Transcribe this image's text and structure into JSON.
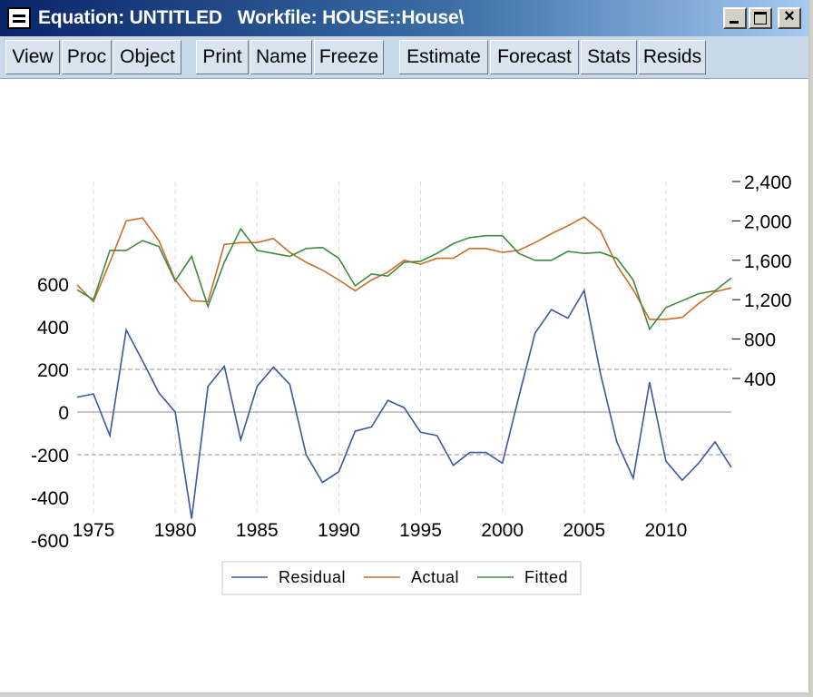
{
  "window": {
    "title": "Equation: UNTITLED   Workfile: HOUSE::House\\",
    "close_glyph": "×"
  },
  "toolbar": {
    "buttons": [
      "View",
      "Proc",
      "Object",
      "Print",
      "Name",
      "Freeze",
      "Estimate",
      "Forecast",
      "Stats",
      "Resids"
    ]
  },
  "chart_data": {
    "type": "line",
    "title": "",
    "x_ticks": [
      "1975",
      "1980",
      "1985",
      "1990",
      "1995",
      "2000",
      "2005",
      "2010"
    ],
    "left_axis": {
      "ticks": [
        "600",
        "400",
        "200",
        "0",
        "-200",
        "-400",
        "-600"
      ],
      "range": [
        -600,
        600
      ]
    },
    "right_axis": {
      "ticks": [
        "2,400",
        "2,000",
        "1,600",
        "1,200",
        "800",
        "400"
      ],
      "range": [
        400,
        2400
      ]
    },
    "reference_lines": [
      200,
      -200
    ],
    "x": [
      1974,
      1975,
      1976,
      1977,
      1978,
      1979,
      1980,
      1981,
      1982,
      1983,
      1984,
      1985,
      1986,
      1987,
      1988,
      1989,
      1990,
      1991,
      1992,
      1993,
      1994,
      1995,
      1996,
      1997,
      1998,
      1999,
      2000,
      2001,
      2002,
      2003,
      2004,
      2005,
      2006,
      2007,
      2008,
      2009,
      2010,
      2011,
      2012,
      2013,
      2014
    ],
    "series": [
      {
        "name": "Residual",
        "axis": "left",
        "color": "#3b57a4",
        "values": [
          70,
          85,
          -110,
          385,
          240,
          90,
          0,
          -500,
          120,
          215,
          -130,
          120,
          210,
          130,
          -200,
          -330,
          -280,
          -90,
          -70,
          55,
          20,
          -95,
          -110,
          -250,
          -190,
          -190,
          -240,
          70,
          370,
          480,
          440,
          570,
          180,
          -140,
          -310,
          140,
          -230,
          -320,
          -240,
          -140,
          -260
        ]
      },
      {
        "name": "Actual",
        "axis": "right",
        "color": "#cc6c2a",
        "values": [
          1350,
          1180,
          1580,
          2000,
          2030,
          1800,
          1400,
          1190,
          1180,
          1760,
          1780,
          1780,
          1820,
          1680,
          1580,
          1500,
          1400,
          1290,
          1400,
          1480,
          1600,
          1560,
          1620,
          1620,
          1720,
          1720,
          1680,
          1700,
          1780,
          1870,
          1950,
          2040,
          1900,
          1550,
          1300,
          1000,
          1000,
          1020,
          1160,
          1280,
          1320
        ]
      },
      {
        "name": "Fitted",
        "axis": "right",
        "color": "#3e8b3e",
        "values": [
          1300,
          1200,
          1700,
          1700,
          1800,
          1740,
          1390,
          1640,
          1130,
          1580,
          1920,
          1700,
          1670,
          1640,
          1720,
          1730,
          1620,
          1340,
          1460,
          1440,
          1580,
          1590,
          1670,
          1770,
          1830,
          1850,
          1850,
          1670,
          1600,
          1600,
          1690,
          1670,
          1680,
          1620,
          1400,
          900,
          1120,
          1190,
          1260,
          1290,
          1420
        ]
      }
    ],
    "legend": {
      "position": "bottom-center",
      "entries": [
        "Residual",
        "Actual",
        "Fitted"
      ]
    }
  }
}
